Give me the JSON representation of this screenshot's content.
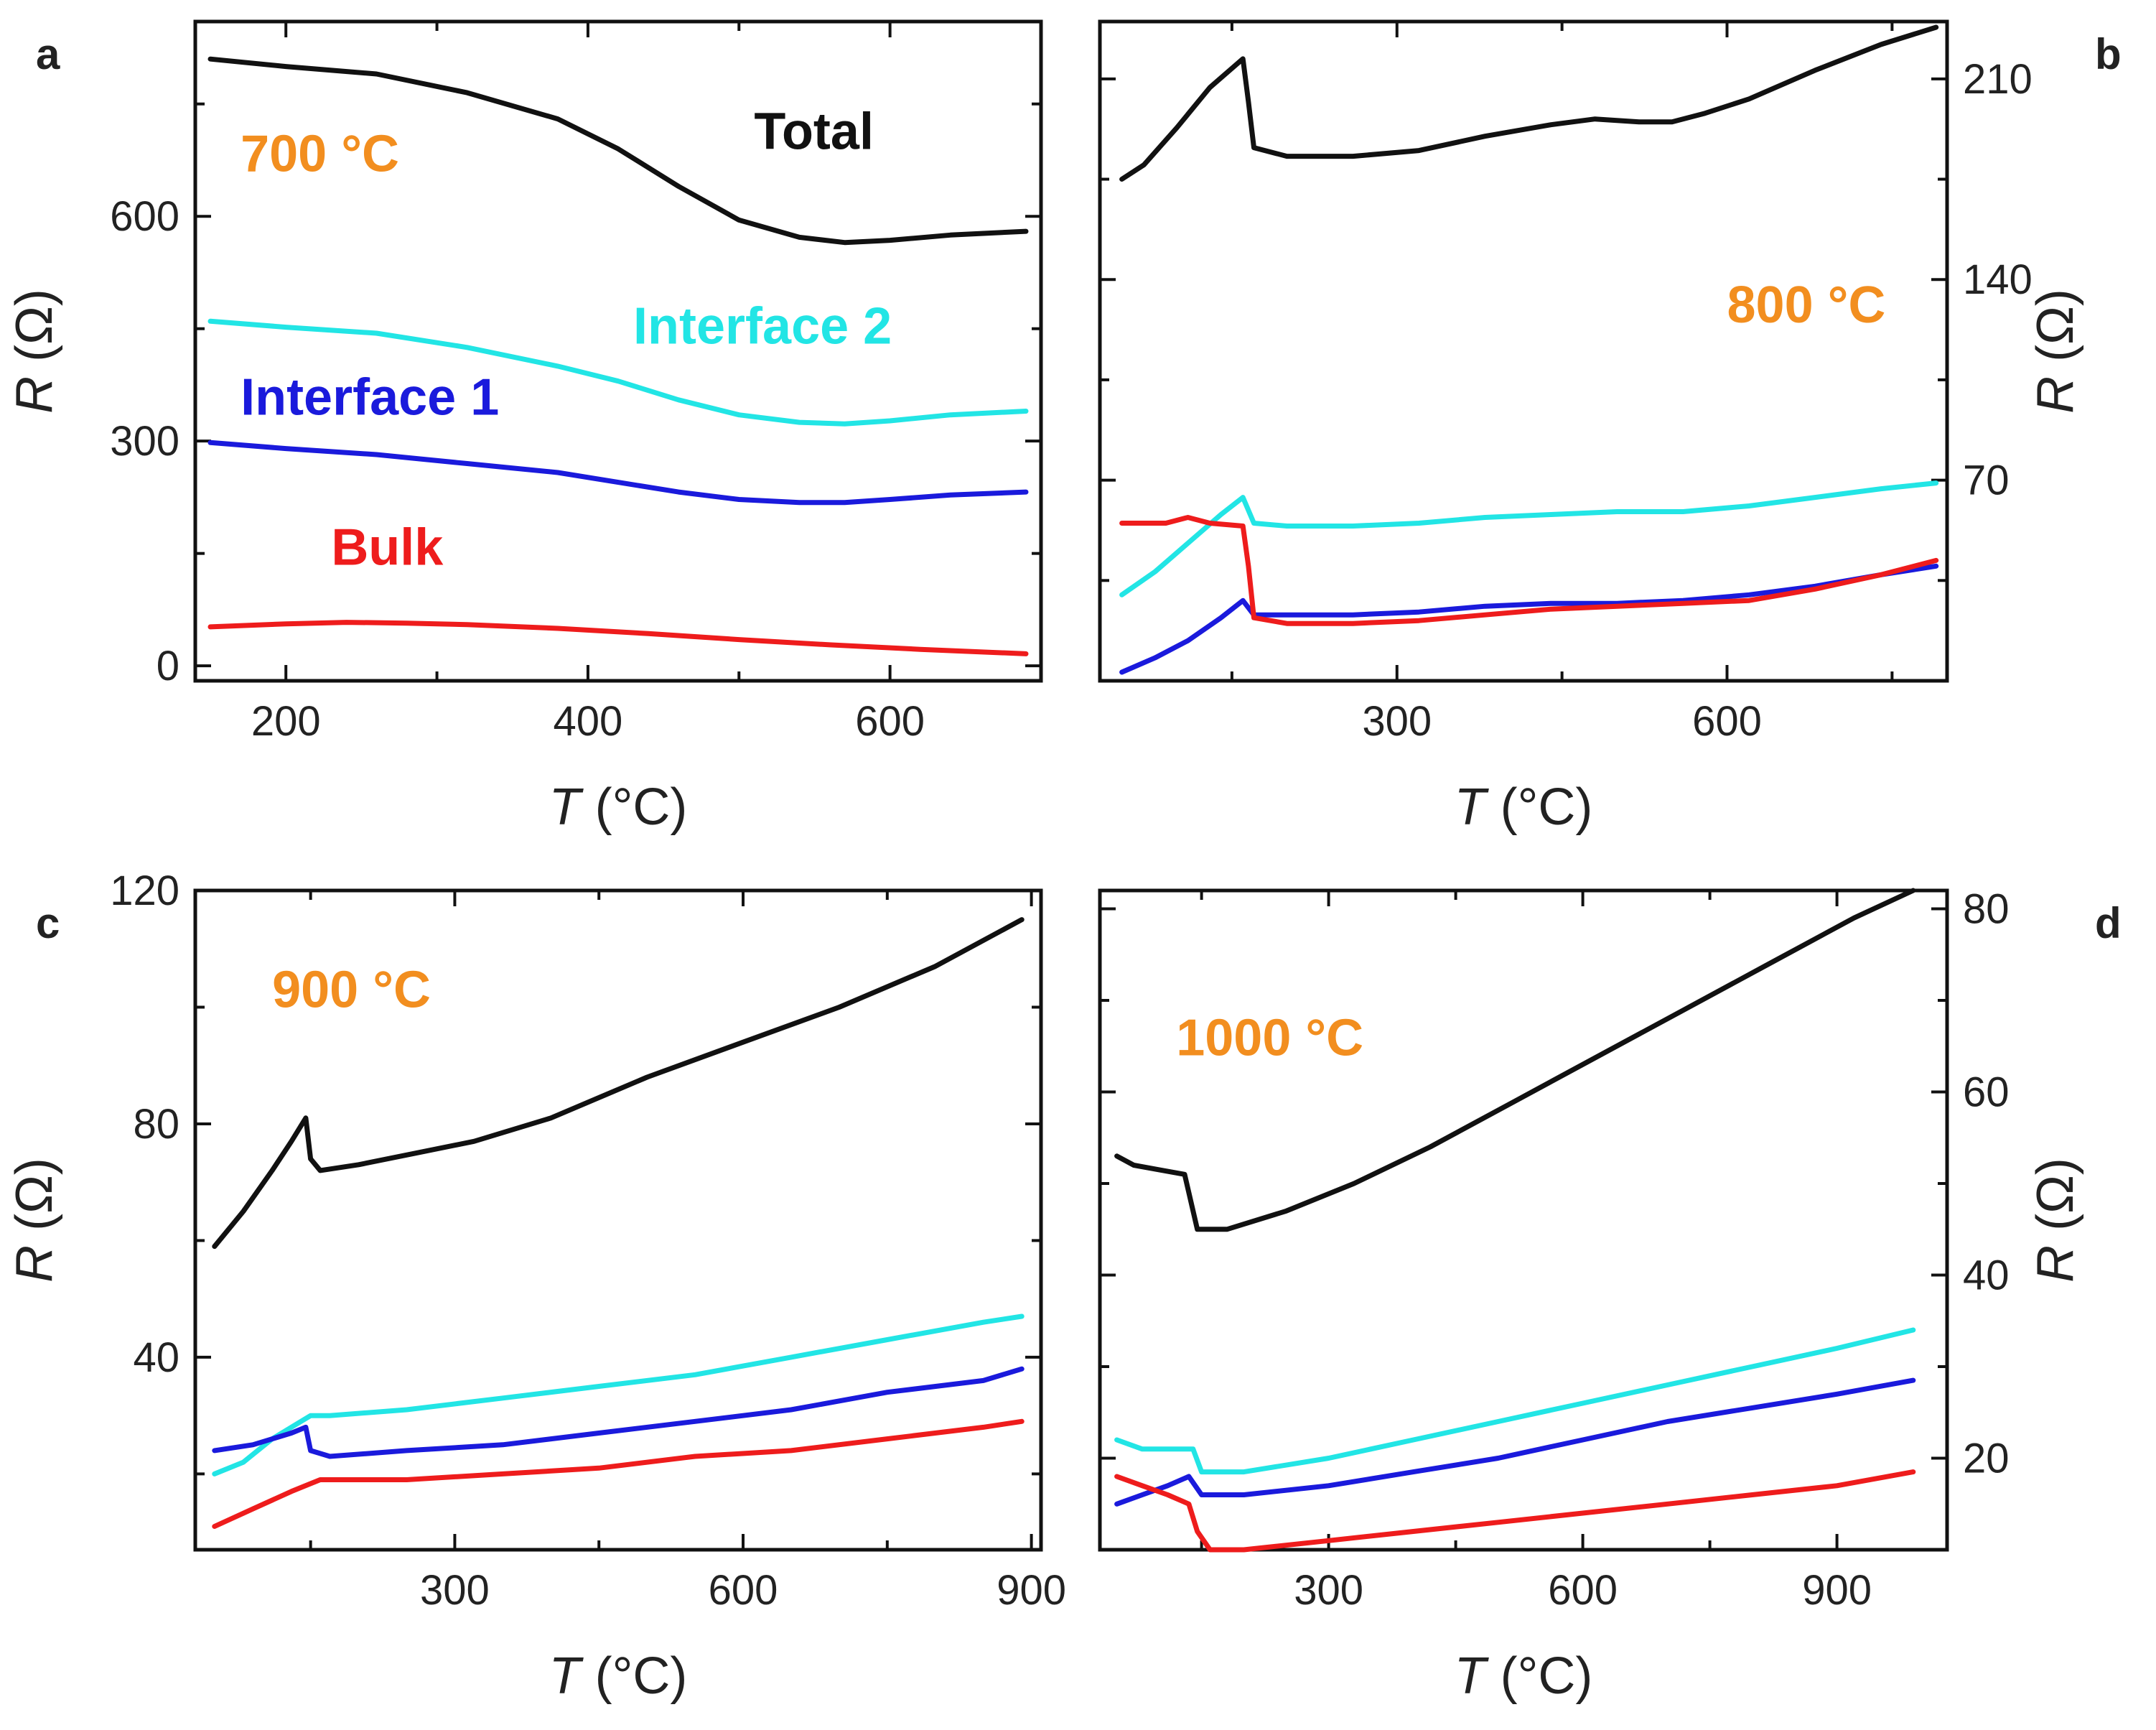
{
  "colors": {
    "Total": "#111111",
    "Interface 2": "#22e5e5",
    "Interface 1": "#1a1adc",
    "Bulk": "#ee1c1c",
    "temp_label": "#f28e1f"
  },
  "chart_data": [
    {
      "type": "line",
      "panel_label": "a",
      "temp_label": "700 °C",
      "xlabel": "T (°C)",
      "ylabel": "R (Ω)",
      "x_italic": "T",
      "x_rest": " (°C)",
      "y_italic": "R",
      "y_rest": " (Ω)",
      "xlim": [
        140,
        700
      ],
      "ylim": [
        -20,
        860
      ],
      "xticks": [
        200,
        400,
        600
      ],
      "yticks": [
        0,
        300,
        600
      ],
      "y_axis_side": "left",
      "series_labels": [
        {
          "name": "Total",
          "text": "Total",
          "x": 510,
          "y": 690
        },
        {
          "name": "Interface 2",
          "text": "Interface 2",
          "x": 430,
          "y": 430
        },
        {
          "name": "Interface 1",
          "text": "Interface 1",
          "x": 170,
          "y": 335
        },
        {
          "name": "Bulk",
          "text": "Bulk",
          "x": 230,
          "y": 135
        }
      ],
      "temp_label_pos": {
        "x": 170,
        "y": 660
      },
      "series": [
        {
          "name": "Total",
          "x": [
            150,
            200,
            260,
            320,
            380,
            420,
            460,
            500,
            540,
            570,
            600,
            640,
            690
          ],
          "values": [
            810,
            800,
            790,
            765,
            730,
            690,
            640,
            595,
            572,
            565,
            568,
            575,
            580
          ]
        },
        {
          "name": "Interface 2",
          "x": [
            150,
            200,
            260,
            320,
            380,
            420,
            460,
            500,
            540,
            570,
            600,
            640,
            690
          ],
          "values": [
            460,
            452,
            444,
            425,
            400,
            380,
            355,
            335,
            325,
            323,
            327,
            335,
            340
          ]
        },
        {
          "name": "Interface 1",
          "x": [
            150,
            200,
            260,
            320,
            380,
            420,
            460,
            500,
            540,
            570,
            600,
            640,
            690
          ],
          "values": [
            298,
            290,
            282,
            270,
            258,
            245,
            232,
            222,
            218,
            218,
            222,
            228,
            232
          ]
        },
        {
          "name": "Bulk",
          "x": [
            150,
            200,
            240,
            280,
            320,
            380,
            440,
            500,
            560,
            620,
            690
          ],
          "values": [
            52,
            56,
            58,
            57,
            55,
            50,
            43,
            35,
            28,
            22,
            16
          ]
        }
      ]
    },
    {
      "type": "line",
      "panel_label": "b",
      "temp_label": "800 °C",
      "xlabel": "T (°C)",
      "ylabel": "R (Ω)",
      "x_italic": "T",
      "x_rest": " (°C)",
      "y_italic": "R",
      "y_rest": " (Ω)",
      "xlim": [
        30,
        800
      ],
      "ylim": [
        0,
        230
      ],
      "xticks": [
        300,
        600
      ],
      "yticks": [
        70,
        140,
        210
      ],
      "y_axis_side": "right",
      "series_labels": [],
      "temp_label_pos": {
        "x": 600,
        "y": 125
      },
      "series": [
        {
          "name": "Total",
          "x": [
            50,
            70,
            100,
            130,
            160,
            165,
            170,
            200,
            260,
            320,
            380,
            440,
            480,
            520,
            550,
            580,
            620,
            680,
            740,
            790
          ],
          "values": [
            175,
            180,
            193,
            207,
            217,
            202,
            186,
            183,
            183,
            185,
            190,
            194,
            196,
            195,
            195,
            198,
            203,
            213,
            222,
            228
          ]
        },
        {
          "name": "Interface 2",
          "x": [
            50,
            80,
            110,
            140,
            160,
            170,
            200,
            260,
            320,
            380,
            440,
            500,
            560,
            620,
            680,
            740,
            790
          ],
          "values": [
            30,
            38,
            48,
            58,
            64,
            55,
            54,
            54,
            55,
            57,
            58,
            59,
            59,
            61,
            64,
            67,
            69
          ]
        },
        {
          "name": "Interface 1",
          "x": [
            50,
            80,
            110,
            140,
            160,
            170,
            200,
            260,
            320,
            380,
            440,
            500,
            560,
            620,
            680,
            740,
            790
          ],
          "values": [
            3,
            8,
            14,
            22,
            28,
            23,
            23,
            23,
            24,
            26,
            27,
            27,
            28,
            30,
            33,
            37,
            40
          ]
        },
        {
          "name": "Bulk",
          "x": [
            50,
            90,
            110,
            130,
            160,
            165,
            170,
            200,
            260,
            320,
            380,
            440,
            500,
            560,
            620,
            680,
            740,
            790
          ],
          "values": [
            55,
            55,
            57,
            55,
            54,
            40,
            22,
            20,
            20,
            21,
            23,
            25,
            26,
            27,
            28,
            32,
            37,
            42
          ]
        }
      ]
    },
    {
      "type": "line",
      "panel_label": "c",
      "temp_label": "900 °C",
      "xlabel": "T (°C)",
      "ylabel": "R (Ω)",
      "x_italic": "T",
      "x_rest": " (°C)",
      "y_italic": "R",
      "y_rest": " (Ω)",
      "xlim": [
        30,
        910
      ],
      "ylim": [
        7,
        120
      ],
      "xticks": [
        300,
        600,
        900
      ],
      "yticks": [
        40,
        80,
        120
      ],
      "y_axis_side": "left",
      "series_labels": [],
      "temp_label_pos": {
        "x": 110,
        "y": 100
      },
      "series": [
        {
          "name": "Total",
          "x": [
            50,
            80,
            110,
            130,
            145,
            150,
            160,
            200,
            260,
            320,
            400,
            500,
            600,
            700,
            800,
            890
          ],
          "values": [
            59,
            65,
            72,
            77,
            81,
            74,
            72,
            73,
            75,
            77,
            81,
            88,
            94,
            100,
            107,
            115
          ]
        },
        {
          "name": "Interface 2",
          "x": [
            50,
            80,
            110,
            140,
            150,
            170,
            250,
            350,
            450,
            550,
            650,
            750,
            850,
            890
          ],
          "values": [
            20,
            22,
            26,
            29,
            30,
            30,
            31,
            33,
            35,
            37,
            40,
            43,
            46,
            47
          ]
        },
        {
          "name": "Interface 1",
          "x": [
            50,
            90,
            130,
            145,
            150,
            170,
            250,
            350,
            450,
            550,
            650,
            750,
            850,
            890
          ],
          "values": [
            24,
            25,
            27,
            28,
            24,
            23,
            24,
            25,
            27,
            29,
            31,
            34,
            36,
            38
          ]
        },
        {
          "name": "Bulk",
          "x": [
            50,
            90,
            130,
            145,
            160,
            250,
            350,
            450,
            550,
            650,
            750,
            850,
            890
          ],
          "values": [
            11,
            14,
            17,
            18,
            19,
            19,
            20,
            21,
            23,
            24,
            26,
            28,
            29
          ]
        }
      ]
    },
    {
      "type": "line",
      "panel_label": "d",
      "temp_label": "1000 °C",
      "xlabel": "T (°C)",
      "ylabel": "R (Ω)",
      "x_italic": "T",
      "x_rest": " (°C)",
      "y_italic": "R",
      "y_rest": " (Ω)",
      "xlim": [
        30,
        1030
      ],
      "ylim": [
        10,
        82
      ],
      "xticks": [
        300,
        600,
        900
      ],
      "yticks": [
        20,
        40,
        60,
        80
      ],
      "y_axis_side": "right",
      "series_labels": [],
      "temp_label_pos": {
        "x": 120,
        "y": 64
      },
      "series": [
        {
          "name": "Total",
          "x": [
            50,
            70,
            100,
            130,
            140,
            145,
            150,
            180,
            250,
            330,
            420,
            520,
            620,
            720,
            820,
            920,
            990
          ],
          "values": [
            53,
            52,
            51.5,
            51,
            47,
            45,
            45,
            45,
            47,
            50,
            54,
            59,
            64,
            69,
            74,
            79,
            82
          ]
        },
        {
          "name": "Interface 2",
          "x": [
            50,
            80,
            110,
            140,
            150,
            200,
            300,
            400,
            500,
            600,
            700,
            800,
            900,
            990
          ],
          "values": [
            22,
            21,
            21,
            21,
            18.5,
            18.5,
            20,
            22,
            24,
            26,
            28,
            30,
            32,
            34
          ]
        },
        {
          "name": "Interface 1",
          "x": [
            50,
            80,
            110,
            135,
            150,
            200,
            300,
            400,
            500,
            600,
            700,
            800,
            900,
            990
          ],
          "values": [
            15,
            16,
            17,
            18,
            16,
            16,
            17,
            18.5,
            20,
            22,
            24,
            25.5,
            27,
            28.5
          ]
        },
        {
          "name": "Bulk",
          "x": [
            50,
            80,
            110,
            135,
            145,
            160,
            200,
            300,
            400,
            500,
            600,
            700,
            800,
            900,
            990
          ],
          "values": [
            18,
            17,
            16,
            15,
            12,
            10,
            10,
            11,
            12,
            13,
            14,
            15,
            16,
            17,
            18.5
          ]
        }
      ]
    }
  ]
}
